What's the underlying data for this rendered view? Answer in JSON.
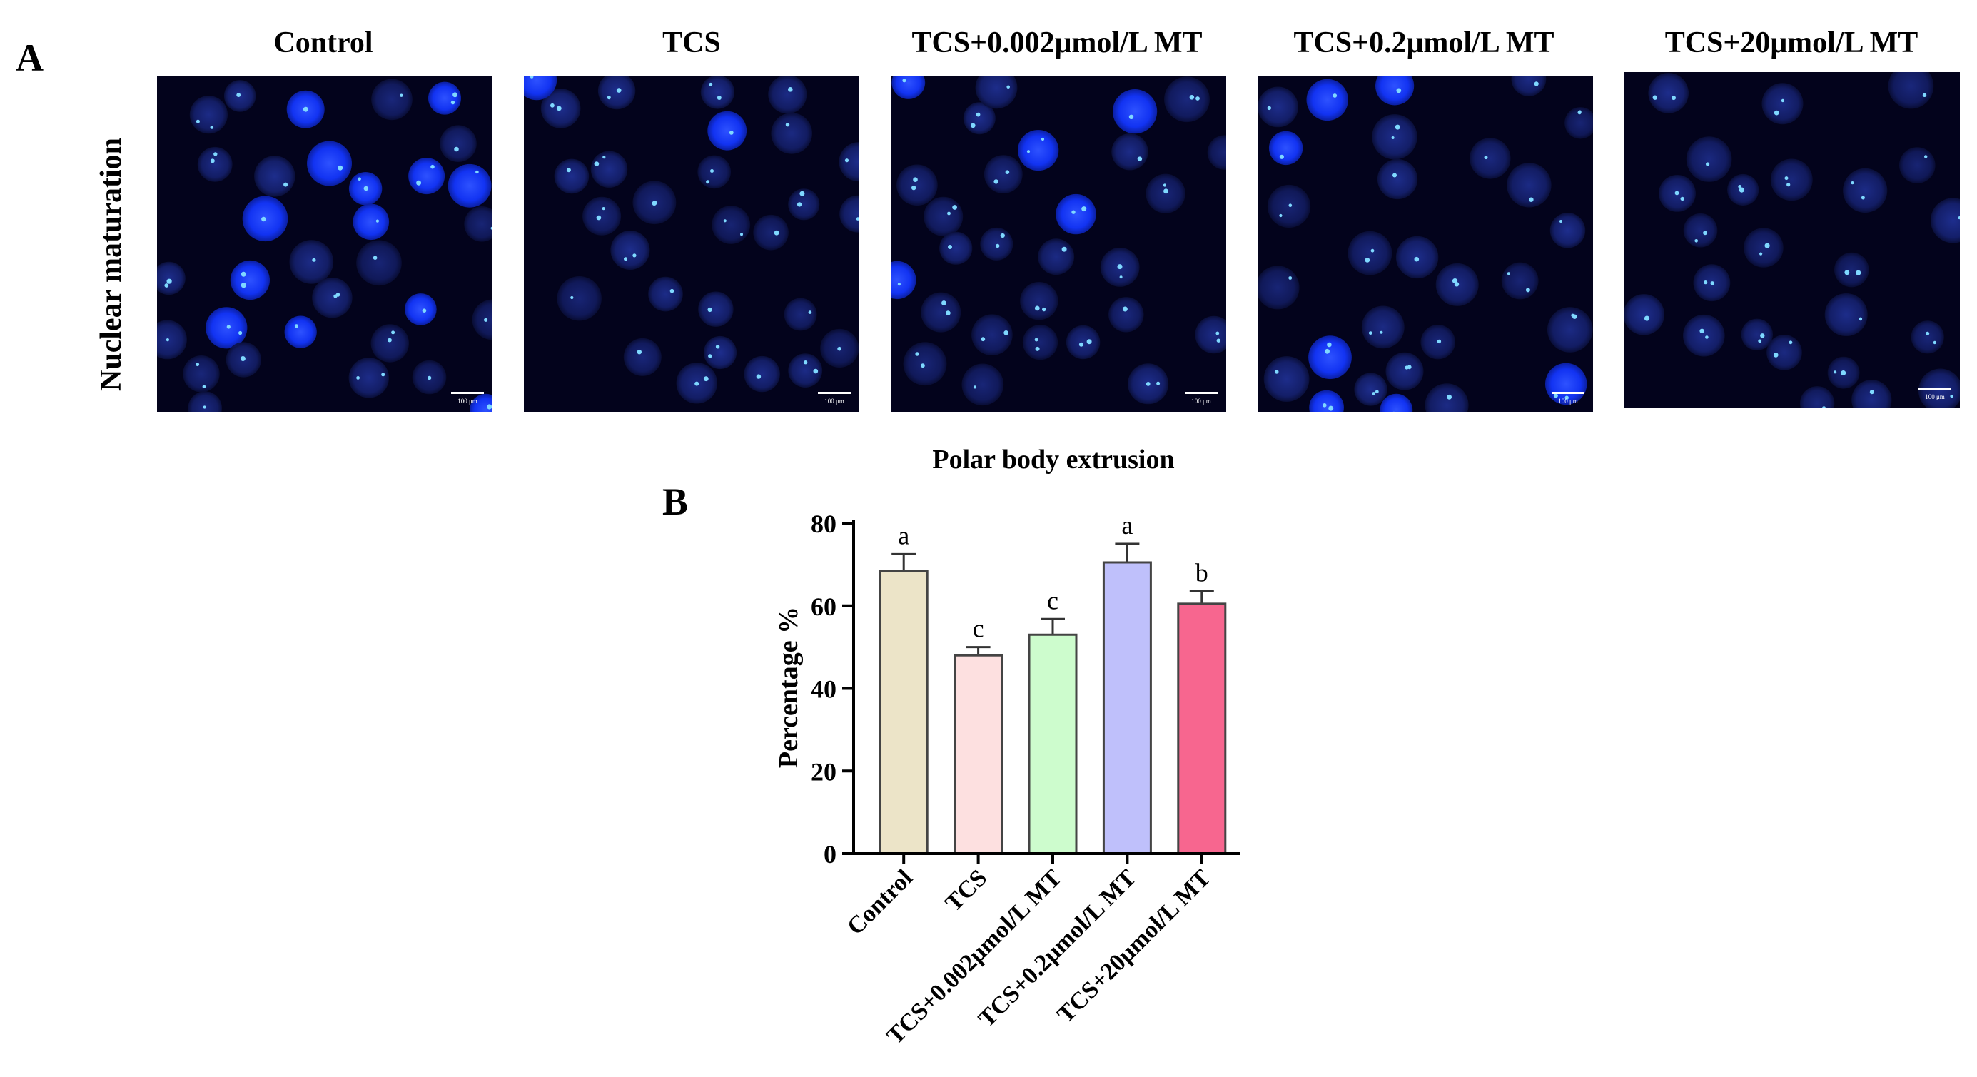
{
  "panel_a": {
    "letter": "A",
    "row_label": "Nuclear maturation",
    "columns": [
      {
        "title": "Control",
        "scale_bar": "100 μm"
      },
      {
        "title": "TCS",
        "scale_bar": "100 μm"
      },
      {
        "title": "TCS+0.002μmol/L MT",
        "scale_bar": "100 μm"
      },
      {
        "title": "TCS+0.2μmol/L MT",
        "scale_bar": "100 μm"
      },
      {
        "title": "TCS+20μmol/L MT",
        "scale_bar": "100 μm"
      }
    ]
  },
  "panel_b": {
    "letter": "B"
  },
  "chart_data": {
    "type": "bar",
    "title": "Polar body extrusion",
    "xlabel": "",
    "ylabel": "Percentage %",
    "ylim": [
      0,
      80
    ],
    "yticks": [
      0,
      20,
      40,
      60,
      80
    ],
    "categories": [
      "Control",
      "TCS",
      "TCS+0.002μmol/L MT",
      "TCS+0.2μmol/L MT",
      "TCS+20μmol/L MT"
    ],
    "values": [
      68.5,
      48,
      53,
      70.5,
      60.5
    ],
    "errors": [
      4,
      2,
      3.8,
      4.5,
      3
    ],
    "significance": [
      "a",
      "c",
      "c",
      "a",
      "b"
    ],
    "colors": [
      "#ece4c8",
      "#fde0e0",
      "#cdfccd",
      "#bfc0fb",
      "#f7668f"
    ]
  }
}
